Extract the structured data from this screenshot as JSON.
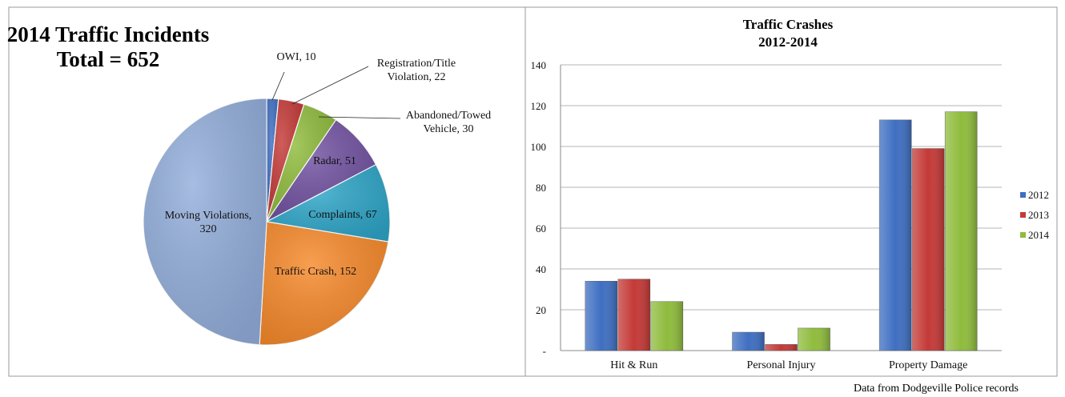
{
  "source_note": "Data from Dodgeville Police records",
  "chart_data": [
    {
      "type": "pie",
      "title": "2014 Traffic Incidents",
      "subtitle": "Total = 652",
      "slices": [
        {
          "label_lines": [
            "OWI, 10"
          ],
          "category": "OWI",
          "value": 10,
          "color": "#3f6fc1"
        },
        {
          "label_lines": [
            "Registration/Title",
            "Violation, 22"
          ],
          "category": "Registration/Title Violation",
          "value": 22,
          "color": "#c43a37"
        },
        {
          "label_lines": [
            "Abandoned/Towed",
            "Vehicle, 30"
          ],
          "category": "Abandoned/Towed Vehicle",
          "value": 30,
          "color": "#8fbc3d"
        },
        {
          "label_lines": [
            "Radar, 51"
          ],
          "category": "Radar",
          "value": 51,
          "color": "#7152a1"
        },
        {
          "label_lines": [
            "Complaints, 67"
          ],
          "category": "Complaints",
          "value": 67,
          "color": "#2ea6c8"
        },
        {
          "label_lines": [
            "Traffic Crash, 152"
          ],
          "category": "Traffic Crash",
          "value": 152,
          "color": "#f6892a"
        },
        {
          "label_lines": [
            "Moving Violations,",
            "320"
          ],
          "category": "Moving Violations",
          "value": 320,
          "color": "#93aedb"
        }
      ]
    },
    {
      "type": "bar",
      "title_lines": [
        "Traffic Crashes",
        "2012-2014"
      ],
      "categories": [
        "Hit & Run",
        "Personal Injury",
        "Property Damage"
      ],
      "series": [
        {
          "name": "2012",
          "values": [
            34,
            9,
            113
          ],
          "color": "#3f6fc1"
        },
        {
          "name": "2013",
          "values": [
            35,
            3,
            99
          ],
          "color": "#c43a37"
        },
        {
          "name": "2014",
          "values": [
            24,
            11,
            117
          ],
          "color": "#8fbc3d"
        }
      ],
      "ylim": [
        0,
        140
      ],
      "yticks": [
        0,
        20,
        40,
        60,
        80,
        100,
        120,
        140
      ],
      "ytick_labels": [
        "-",
        "20",
        "40",
        "60",
        "80",
        "100",
        "120",
        "140"
      ],
      "grid": true,
      "legend_position": "right"
    }
  ]
}
